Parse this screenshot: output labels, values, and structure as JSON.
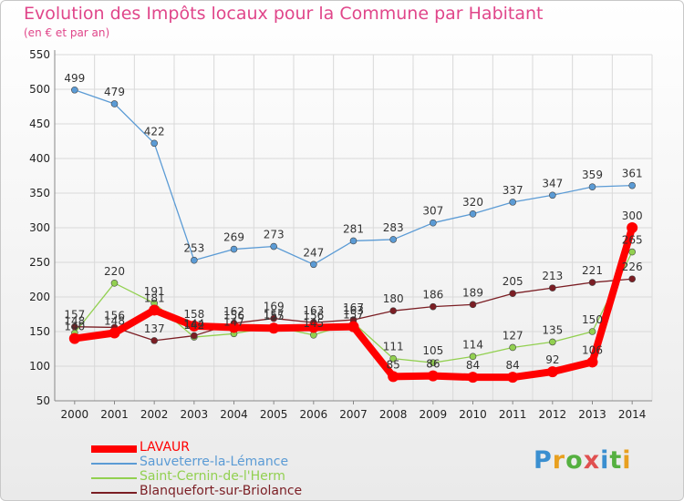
{
  "title": "Evolution des Impôts locaux pour la Commune par Habitant",
  "subtitle": "(en € et par an)",
  "logo": [
    "P",
    "r",
    "o",
    "x",
    "i",
    "t",
    "i"
  ],
  "logo_colors": [
    "#3a8fd0",
    "#e8a020",
    "#55b040",
    "#e05050",
    "#3a8fd0",
    "#55b040",
    "#e8a020"
  ],
  "colors": {
    "title": "#e0468a",
    "grid": "#d9d9d9",
    "axis": "#888888"
  },
  "chart_data": {
    "type": "line",
    "title": "Evolution des Impôts locaux pour la Commune par Habitant",
    "subtitle": "(en € et par an)",
    "xlabel": "",
    "ylabel": "",
    "x": [
      "2000",
      "2001",
      "2002",
      "2003",
      "2004",
      "2005",
      "2006",
      "2007",
      "2008",
      "2009",
      "2010",
      "2011",
      "2012",
      "2013",
      "2014"
    ],
    "ylim": [
      50,
      550
    ],
    "yticks": [
      50,
      100,
      150,
      200,
      250,
      300,
      350,
      400,
      450,
      500,
      550
    ],
    "grid": true,
    "legend_position": "bottom",
    "series": [
      {
        "name": "LAVAUR",
        "color": "#ff0000",
        "values": [
          140,
          148,
          181,
          158,
          156,
          155,
          156,
          157,
          85,
          86,
          84,
          84,
          92,
          106,
          300
        ],
        "labels": [
          "140",
          "148",
          "181",
          "158",
          "156",
          "155",
          "156",
          "157",
          "85",
          "86",
          "84",
          "84",
          "92",
          "106",
          "300"
        ]
      },
      {
        "name": "Sauveterre-la-Lémance",
        "color": "#5b9bd5",
        "values": [
          499,
          479,
          422,
          253,
          269,
          273,
          247,
          281,
          283,
          307,
          320,
          337,
          347,
          359,
          361
        ],
        "labels": [
          "499",
          "479",
          "422",
          "253",
          "269",
          "273",
          "247",
          "281",
          "283",
          "307",
          "320",
          "337",
          "347",
          "359",
          "361"
        ]
      },
      {
        "name": "Saint-Cernin-de-l'Herm",
        "color": "#92d050",
        "values": [
          148,
          220,
          191,
          142,
          147,
          157,
          145,
          163,
          111,
          105,
          114,
          127,
          135,
          150,
          265
        ],
        "labels": [
          "148",
          "220",
          "191",
          "142",
          "147",
          "157",
          "145",
          "163",
          "111",
          "105",
          "114",
          "127",
          "135",
          "150",
          "265"
        ]
      },
      {
        "name": "Blanquefort-sur-Briolance",
        "color": "#7b1e24",
        "values": [
          157,
          156,
          137,
          144,
          162,
          169,
          163,
          167,
          180,
          186,
          189,
          205,
          213,
          221,
          226
        ],
        "labels": [
          "157",
          "156",
          "137",
          "144",
          "162",
          "169",
          "163",
          "167",
          "180",
          "186",
          "189",
          "205",
          "213",
          "221",
          "226"
        ]
      }
    ]
  }
}
